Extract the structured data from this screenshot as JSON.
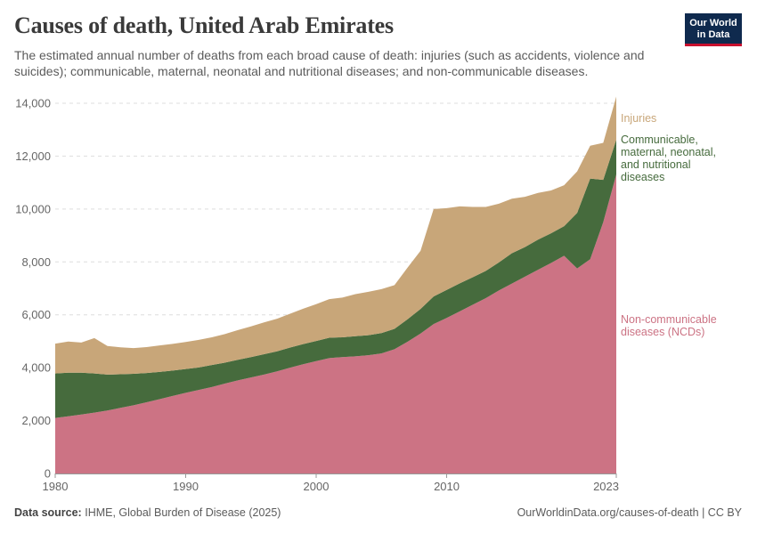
{
  "header": {
    "title": "Causes of death, United Arab Emirates",
    "subtitle": "The estimated annual number of deaths from each broad cause of death: injuries (such as accidents, violence and suicides); communicable, maternal, neonatal and nutritional diseases; and non-communicable diseases.",
    "logo_line1": "Our World",
    "logo_line2": "in Data"
  },
  "footer": {
    "source_label": "Data source:",
    "source_text": "IHME, Global Burden of Disease (2025)",
    "url": "OurWorldinData.org/causes-of-death | CC BY"
  },
  "colors": {
    "ncd": "#cc7384",
    "communicable": "#466b3d",
    "injuries": "#c8a679"
  },
  "chart_data": {
    "type": "area",
    "stacked": true,
    "x": [
      1980,
      1981,
      1982,
      1983,
      1984,
      1985,
      1986,
      1987,
      1988,
      1989,
      1990,
      1991,
      1992,
      1993,
      1994,
      1995,
      1996,
      1997,
      1998,
      1999,
      2000,
      2001,
      2002,
      2003,
      2004,
      2005,
      2006,
      2007,
      2008,
      2009,
      2010,
      2011,
      2012,
      2013,
      2014,
      2015,
      2016,
      2017,
      2018,
      2019,
      2020,
      2021,
      2022,
      2023
    ],
    "series": [
      {
        "name": "Non-communicable diseases (NCDs)",
        "color_key": "ncd",
        "values": [
          2100,
          2160,
          2230,
          2300,
          2380,
          2480,
          2580,
          2690,
          2810,
          2930,
          3050,
          3160,
          3270,
          3400,
          3520,
          3630,
          3740,
          3860,
          4000,
          4130,
          4250,
          4360,
          4400,
          4430,
          4470,
          4540,
          4700,
          4980,
          5290,
          5650,
          5880,
          6130,
          6380,
          6630,
          6920,
          7180,
          7440,
          7700,
          7960,
          8230,
          7750,
          8100,
          9500,
          11300
        ]
      },
      {
        "name": "Communicable, maternal, neonatal, and nutritional diseases",
        "color_key": "communicable",
        "values": [
          1680,
          1650,
          1580,
          1480,
          1360,
          1270,
          1190,
          1110,
          1030,
          960,
          900,
          850,
          830,
          790,
          780,
          770,
          770,
          760,
          760,
          760,
          760,
          770,
          750,
          760,
          760,
          770,
          770,
          850,
          930,
          1040,
          1060,
          1060,
          1040,
          1030,
          1060,
          1150,
          1120,
          1140,
          1120,
          1120,
          2100,
          3050,
          1600,
          1320
        ]
      },
      {
        "name": "Injuries",
        "color_key": "injuries",
        "values": [
          1130,
          1180,
          1140,
          1340,
          1080,
          1020,
          970,
          980,
          1000,
          1010,
          1020,
          1040,
          1050,
          1080,
          1120,
          1160,
          1200,
          1230,
          1280,
          1340,
          1390,
          1460,
          1500,
          1590,
          1640,
          1660,
          1650,
          1950,
          2200,
          3310,
          3090,
          2910,
          2660,
          2420,
          2220,
          2060,
          1900,
          1770,
          1620,
          1550,
          1570,
          1240,
          1400,
          1630
        ]
      }
    ],
    "ylim": [
      0,
      14200
    ],
    "yticks": [
      0,
      2000,
      4000,
      6000,
      8000,
      10000,
      12000,
      14000
    ],
    "ytick_labels": [
      "0",
      "2,000",
      "4,000",
      "6,000",
      "8,000",
      "10,000",
      "12,000",
      "14,000"
    ],
    "xticks": [
      1980,
      1990,
      2000,
      2010,
      2023
    ],
    "xtick_labels": [
      "1980",
      "1990",
      "2000",
      "2010",
      "2023"
    ],
    "series_labels": [
      {
        "key": "injuries",
        "lines": [
          "Injuries"
        ]
      },
      {
        "key": "communicable",
        "lines": [
          "Communicable,",
          "maternal, neonatal,",
          "and nutritional",
          "diseases"
        ]
      },
      {
        "key": "ncd",
        "lines": [
          "Non-communicable",
          "diseases (NCDs)"
        ]
      }
    ],
    "grid": true,
    "legend": "right-inline"
  }
}
